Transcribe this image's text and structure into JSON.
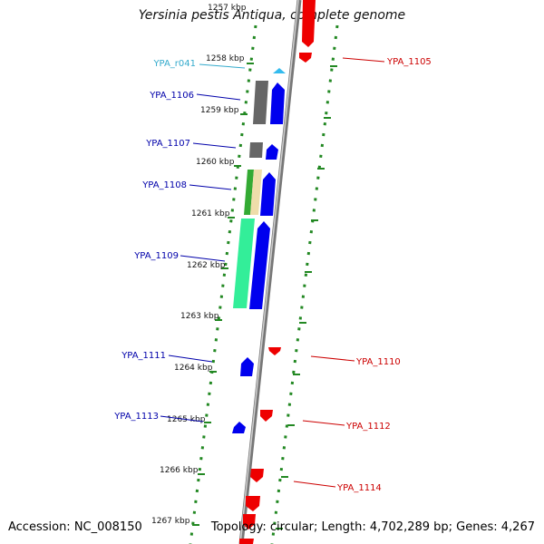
{
  "title": "Yersinia pestis Antiqua, complete genome",
  "footer": {
    "accession": "Accession: NC_008150",
    "topology": "Topology: circular; Length: 4,702,289 bp; Genes: 4,267"
  },
  "colors": {
    "forward_cds": "#0000ee",
    "reverse_cds": "#ee0000",
    "rna": "#33bbee",
    "tick_mark": "#228822",
    "backbone": "#888888",
    "left_label": "#0000aa",
    "right_label": "#cc0000",
    "rna_label": "#33aacc"
  },
  "kbp_labels": [
    "1257 kbp",
    "1258 kbp",
    "1259 kbp",
    "1260 kbp",
    "1261 kbp",
    "1262 kbp",
    "1263 kbp",
    "1264 kbp",
    "1265 kbp",
    "1266 kbp",
    "1267 kbp"
  ],
  "left_labels": [
    "YPA_r041",
    "YPA_1106",
    "YPA_1107",
    "YPA_1108",
    "YPA_1109",
    "YPA_1111",
    "YPA_1113"
  ],
  "right_labels": [
    "YPA_1105",
    "YPA_1110",
    "YPA_1112",
    "YPA_1114"
  ]
}
